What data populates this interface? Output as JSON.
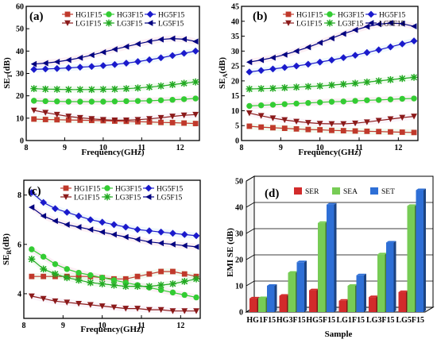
{
  "chart_data": [
    {
      "type": "line",
      "panel_label": "(a)",
      "xlabel": "Frequency(GHz)",
      "ylabel_main": "SE",
      "ylabel_sub": "T",
      "ylabel_unit": "(dB)",
      "xlim": [
        8,
        12.5
      ],
      "ylim": [
        0,
        60
      ],
      "xticks": [
        "8",
        "9",
        "10",
        "11",
        "12"
      ],
      "yticks": [
        "0",
        "10",
        "20",
        "30",
        "40",
        "50",
        "60"
      ],
      "x": [
        8.2,
        8.5,
        8.8,
        9.1,
        9.4,
        9.7,
        10.0,
        10.3,
        10.6,
        10.9,
        11.2,
        11.5,
        11.8,
        12.1,
        12.4
      ],
      "series": [
        {
          "name": "HG1F15",
          "color": "#c0392b",
          "marker": "square",
          "values": [
            9.6,
            9.4,
            9.3,
            9.2,
            9.1,
            9.0,
            8.9,
            8.7,
            8.6,
            8.4,
            8.3,
            8.1,
            8.0,
            7.8,
            7.6
          ]
        },
        {
          "name": "HG3F15",
          "color": "#33cc33",
          "marker": "circle",
          "values": [
            17.8,
            17.6,
            17.5,
            17.4,
            17.4,
            17.4,
            17.4,
            17.5,
            17.6,
            17.7,
            17.8,
            18.0,
            18.2,
            18.5,
            18.8
          ]
        },
        {
          "name": "HG5F15",
          "color": "#1a1acc",
          "marker": "diamond",
          "values": [
            31.8,
            32.0,
            32.2,
            32.5,
            32.8,
            33.1,
            33.5,
            34.0,
            34.6,
            35.3,
            36.1,
            37.0,
            38.0,
            39.0,
            40.0
          ]
        },
        {
          "name": "LG1F15",
          "color": "#8b1a1a",
          "marker": "triangle-down",
          "values": [
            13.5,
            12.5,
            11.6,
            10.8,
            10.2,
            9.7,
            9.3,
            9.1,
            9.1,
            9.3,
            9.7,
            10.2,
            10.8,
            11.3,
            11.6
          ]
        },
        {
          "name": "LG3F15",
          "color": "#22aa22",
          "marker": "star",
          "values": [
            23.2,
            23.0,
            22.9,
            22.8,
            22.8,
            22.8,
            22.9,
            23.0,
            23.2,
            23.5,
            23.9,
            24.4,
            25.0,
            25.6,
            26.2
          ]
        },
        {
          "name": "LG5F15",
          "color": "#000080",
          "marker": "triangle-left",
          "values": [
            34.2,
            34.6,
            35.2,
            36.0,
            37.0,
            38.2,
            39.5,
            40.8,
            42.0,
            43.2,
            44.3,
            45.2,
            45.6,
            45.3,
            44.3
          ]
        }
      ]
    },
    {
      "type": "line",
      "panel_label": "(b)",
      "xlabel": "Frequency(GHz)",
      "ylabel_main": "SE",
      "ylabel_sub": "A",
      "ylabel_unit": "(dB)",
      "xlim": [
        8,
        12.5
      ],
      "ylim": [
        0,
        45
      ],
      "xticks": [
        "8",
        "9",
        "10",
        "11",
        "12"
      ],
      "yticks": [
        "0",
        "5",
        "10",
        "15",
        "20",
        "25",
        "30",
        "35",
        "40",
        "45"
      ],
      "x": [
        8.2,
        8.5,
        8.8,
        9.1,
        9.4,
        9.7,
        10.0,
        10.3,
        10.6,
        10.9,
        11.2,
        11.5,
        11.8,
        12.1,
        12.4
      ],
      "series": [
        {
          "name": "HG1F15",
          "color": "#c0392b",
          "marker": "square",
          "values": [
            4.8,
            4.5,
            4.3,
            4.1,
            3.9,
            3.7,
            3.6,
            3.4,
            3.3,
            3.2,
            3.1,
            3.0,
            2.9,
            2.8,
            2.7
          ]
        },
        {
          "name": "HG3F15",
          "color": "#33cc33",
          "marker": "circle",
          "values": [
            11.6,
            11.8,
            12.0,
            12.2,
            12.4,
            12.6,
            12.8,
            13.0,
            13.1,
            13.3,
            13.5,
            13.6,
            13.8,
            14.0,
            14.1
          ]
        },
        {
          "name": "HG5F15",
          "color": "#1a1acc",
          "marker": "diamond",
          "values": [
            23.0,
            23.5,
            24.0,
            24.5,
            25.0,
            25.6,
            26.3,
            27.0,
            27.8,
            28.6,
            29.5,
            30.4,
            31.4,
            32.4,
            33.4
          ]
        },
        {
          "name": "LG1F15",
          "color": "#8b1a1a",
          "marker": "triangle-down",
          "values": [
            9.2,
            8.3,
            7.5,
            6.9,
            6.4,
            6.0,
            5.7,
            5.6,
            5.6,
            5.8,
            6.2,
            6.7,
            7.2,
            7.7,
            8.1
          ]
        },
        {
          "name": "LG3F15",
          "color": "#22aa22",
          "marker": "star",
          "values": [
            17.3,
            17.4,
            17.5,
            17.7,
            17.9,
            18.1,
            18.3,
            18.6,
            18.9,
            19.2,
            19.6,
            20.0,
            20.4,
            20.8,
            21.2
          ]
        },
        {
          "name": "LG5F15",
          "color": "#000080",
          "marker": "triangle-left",
          "values": [
            26.3,
            27.0,
            27.8,
            28.8,
            30.0,
            31.3,
            32.8,
            34.3,
            35.8,
            37.1,
            38.2,
            39.0,
            39.4,
            39.2,
            38.3
          ]
        }
      ]
    },
    {
      "type": "line",
      "panel_label": "(c)",
      "xlabel": "Frequency(GHz)",
      "ylabel_main": "SE",
      "ylabel_sub": "R",
      "ylabel_unit": "(dB)",
      "xlim": [
        8,
        12.5
      ],
      "ylim": [
        3,
        8.6
      ],
      "xticks": [
        "8",
        "9",
        "10",
        "11",
        "12"
      ],
      "yticks": [
        "4",
        "6",
        "8"
      ],
      "ytick_values": [
        4,
        6,
        8
      ],
      "x": [
        8.2,
        8.5,
        8.8,
        9.1,
        9.4,
        9.7,
        10.0,
        10.3,
        10.6,
        10.9,
        11.2,
        11.5,
        11.8,
        12.1,
        12.4
      ],
      "series": [
        {
          "name": "HG1F15",
          "color": "#c0392b",
          "marker": "square",
          "values": [
            4.7,
            4.7,
            4.7,
            4.7,
            4.7,
            4.7,
            4.65,
            4.6,
            4.6,
            4.7,
            4.8,
            4.9,
            4.9,
            4.8,
            4.7
          ]
        },
        {
          "name": "HG3F15",
          "color": "#33cc33",
          "marker": "circle",
          "values": [
            5.8,
            5.5,
            5.2,
            5.0,
            4.85,
            4.75,
            4.65,
            4.55,
            4.45,
            4.35,
            4.25,
            4.15,
            4.05,
            3.95,
            3.85
          ]
        },
        {
          "name": "HG5F15",
          "color": "#1a1acc",
          "marker": "diamond",
          "values": [
            8.1,
            7.7,
            7.45,
            7.3,
            7.15,
            7.0,
            6.9,
            6.8,
            6.7,
            6.6,
            6.55,
            6.5,
            6.45,
            6.4,
            6.35
          ]
        },
        {
          "name": "LG1F15",
          "color": "#8b1a1a",
          "marker": "triangle-down",
          "values": [
            3.9,
            3.8,
            3.7,
            3.65,
            3.6,
            3.55,
            3.5,
            3.45,
            3.4,
            3.4,
            3.35,
            3.35,
            3.3,
            3.3,
            3.3
          ]
        },
        {
          "name": "LG3F15",
          "color": "#22aa22",
          "marker": "star",
          "values": [
            5.4,
            5.0,
            4.8,
            4.65,
            4.55,
            4.45,
            4.4,
            4.35,
            4.3,
            4.3,
            4.3,
            4.35,
            4.4,
            4.5,
            4.6
          ]
        },
        {
          "name": "LG5F15",
          "color": "#000080",
          "marker": "triangle-left",
          "values": [
            7.5,
            7.15,
            6.95,
            6.8,
            6.7,
            6.6,
            6.5,
            6.4,
            6.3,
            6.2,
            6.1,
            6.05,
            6.0,
            5.95,
            5.9
          ]
        }
      ]
    },
    {
      "type": "bar",
      "panel_label": "(d)",
      "xlabel": "Sample",
      "ylabel": "EMI SE (dB)",
      "ylim": [
        0,
        50
      ],
      "yticks": [
        "0",
        "10",
        "20",
        "30",
        "40",
        "50"
      ],
      "categories": [
        "HG1F15",
        "HG3F15",
        "HG5F15",
        "LG1F15",
        "LG3F15",
        "LG5F15"
      ],
      "series": [
        {
          "name": "SER",
          "color": "#d22b2b",
          "values": [
            5.2,
            6.2,
            8.3,
            4.3,
            5.7,
            7.6
          ]
        },
        {
          "name": "SEA",
          "color": "#77cc55",
          "values": [
            5.3,
            15.0,
            34.0,
            10.0,
            22.0,
            40.5
          ]
        },
        {
          "name": "SET",
          "color": "#2e6fd6",
          "values": [
            10.0,
            19.0,
            41.0,
            14.0,
            26.5,
            46.5
          ]
        }
      ]
    }
  ]
}
